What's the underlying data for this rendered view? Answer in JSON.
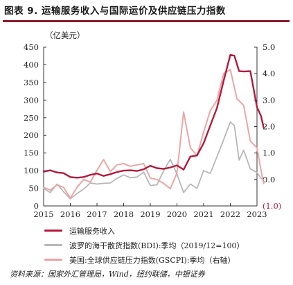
{
  "figure": {
    "title": "图表 9. 运输服务收入与国际运价及供应链压力指数",
    "source": "资料来源：国家外汇管理局，Wind，纽约联储，中银证券"
  },
  "colors": {
    "series_transport": "#b3193b",
    "series_bdi": "#b7b7b7",
    "series_gscpi": "#eda4a4",
    "accent_rule": "#8b1a2b",
    "axis": "#333333"
  },
  "chart_data": {
    "type": "line",
    "left_unit_label": "（亿美元）",
    "right_unit_label": "",
    "xlim": [
      2015,
      2023
    ],
    "x_ticks": [
      "2015",
      "2016",
      "2017",
      "2018",
      "2019",
      "2020",
      "2021",
      "2022",
      "2023"
    ],
    "left_axis": {
      "ylim": [
        0,
        450
      ],
      "ticks": [
        "0",
        "50",
        "100",
        "150",
        "200",
        "250",
        "300",
        "350",
        "400",
        "450"
      ]
    },
    "right_axis": {
      "ylim": [
        -1,
        5
      ],
      "ticks": [
        "(1.0)",
        "0.0",
        "1.0",
        "2.0",
        "3.0",
        "4.0",
        "5.0"
      ]
    },
    "series": [
      {
        "name": "运输服务收入",
        "axis": "left",
        "color": "#b3193b",
        "width": 2.4,
        "points": [
          [
            2015.0,
            97
          ],
          [
            2015.25,
            101
          ],
          [
            2015.5,
            95
          ],
          [
            2015.75,
            93
          ],
          [
            2016.0,
            82
          ],
          [
            2016.25,
            80
          ],
          [
            2016.5,
            82
          ],
          [
            2016.75,
            88
          ],
          [
            2017.0,
            92
          ],
          [
            2017.25,
            85
          ],
          [
            2017.5,
            90
          ],
          [
            2017.75,
            96
          ],
          [
            2018.0,
            100
          ],
          [
            2018.25,
            101
          ],
          [
            2018.5,
            99
          ],
          [
            2018.75,
            104
          ],
          [
            2019.0,
            114
          ],
          [
            2019.25,
            107
          ],
          [
            2019.5,
            105
          ],
          [
            2019.75,
            109
          ],
          [
            2020.0,
            115
          ],
          [
            2020.25,
            103
          ],
          [
            2020.5,
            140
          ],
          [
            2020.75,
            143
          ],
          [
            2021.0,
            178
          ],
          [
            2021.25,
            228
          ],
          [
            2021.5,
            278
          ],
          [
            2021.75,
            355
          ],
          [
            2022.0,
            428
          ],
          [
            2022.15,
            426
          ],
          [
            2022.33,
            382
          ],
          [
            2022.5,
            381
          ],
          [
            2022.75,
            382
          ],
          [
            2023.0,
            280
          ],
          [
            2023.15,
            255
          ],
          [
            2023.25,
            222
          ]
        ]
      },
      {
        "name": "波罗的海干散货指数(BDI):季均（2019/12=100）",
        "axis": "left",
        "color": "#b7b7b7",
        "width": 1.8,
        "points": [
          [
            2015.0,
            50
          ],
          [
            2015.25,
            38
          ],
          [
            2015.5,
            62
          ],
          [
            2015.75,
            40
          ],
          [
            2016.0,
            20
          ],
          [
            2016.25,
            35
          ],
          [
            2016.5,
            48
          ],
          [
            2016.75,
            65
          ],
          [
            2017.0,
            62
          ],
          [
            2017.25,
            64
          ],
          [
            2017.5,
            65
          ],
          [
            2017.75,
            78
          ],
          [
            2018.0,
            88
          ],
          [
            2018.25,
            80
          ],
          [
            2018.5,
            82
          ],
          [
            2018.75,
            96
          ],
          [
            2019.0,
            58
          ],
          [
            2019.25,
            60
          ],
          [
            2019.5,
            100
          ],
          [
            2019.75,
            132
          ],
          [
            2020.0,
            90
          ],
          [
            2020.25,
            38
          ],
          [
            2020.5,
            62
          ],
          [
            2020.75,
            50
          ],
          [
            2021.0,
            100
          ],
          [
            2021.25,
            92
          ],
          [
            2021.5,
            140
          ],
          [
            2021.75,
            188
          ],
          [
            2022.0,
            238
          ],
          [
            2022.15,
            228
          ],
          [
            2022.33,
            130
          ],
          [
            2022.5,
            158
          ],
          [
            2022.75,
            105
          ],
          [
            2023.0,
            95
          ],
          [
            2023.15,
            78
          ],
          [
            2023.25,
            75
          ]
        ]
      },
      {
        "name": "美国:全球供应链压力指数(GSCPI):季均（右轴）",
        "axis": "right",
        "color": "#eda4a4",
        "width": 2.0,
        "points": [
          [
            2015.0,
            -0.3
          ],
          [
            2015.25,
            -0.4
          ],
          [
            2015.5,
            -0.2
          ],
          [
            2015.75,
            -0.3
          ],
          [
            2016.0,
            -0.7
          ],
          [
            2016.25,
            -0.3
          ],
          [
            2016.5,
            0.0
          ],
          [
            2016.75,
            -0.1
          ],
          [
            2017.0,
            0.35
          ],
          [
            2017.25,
            0.75
          ],
          [
            2017.5,
            0.3
          ],
          [
            2017.75,
            0.55
          ],
          [
            2018.0,
            0.6
          ],
          [
            2018.25,
            0.5
          ],
          [
            2018.5,
            0.55
          ],
          [
            2018.75,
            0.6
          ],
          [
            2019.0,
            0.05
          ],
          [
            2019.25,
            0.0
          ],
          [
            2019.5,
            -0.15
          ],
          [
            2019.75,
            -0.35
          ],
          [
            2020.0,
            0.25
          ],
          [
            2020.25,
            2.55
          ],
          [
            2020.5,
            1.2
          ],
          [
            2020.75,
            0.9
          ],
          [
            2021.0,
            1.8
          ],
          [
            2021.25,
            2.6
          ],
          [
            2021.5,
            3.0
          ],
          [
            2021.75,
            4.0
          ],
          [
            2022.0,
            4.15
          ],
          [
            2022.25,
            3.05
          ],
          [
            2022.5,
            2.8
          ],
          [
            2022.75,
            1.45
          ],
          [
            2023.0,
            1.2
          ],
          [
            2023.15,
            0.35
          ],
          [
            2023.25,
            -0.15
          ]
        ]
      }
    ]
  }
}
